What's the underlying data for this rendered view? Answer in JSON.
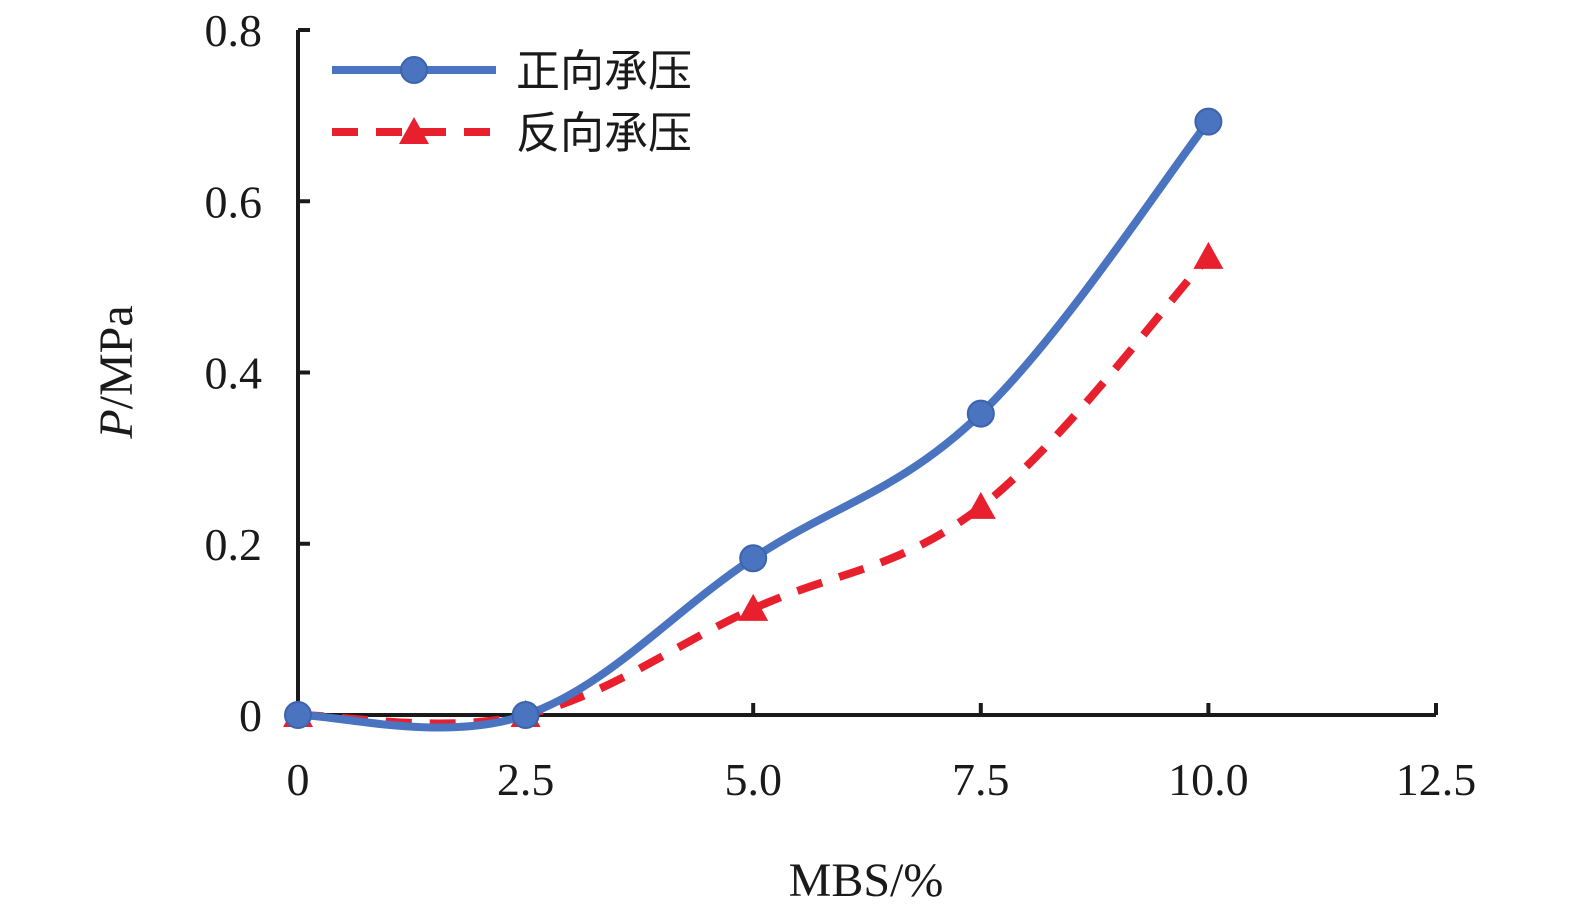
{
  "chart_data": {
    "type": "line",
    "title": "",
    "xlabel": "MBS/%",
    "ylabel_italic": "P",
    "ylabel_rest": "/MPa",
    "xlim": [
      0,
      12.5
    ],
    "ylim": [
      0,
      0.8
    ],
    "x_ticks": [
      0,
      2.5,
      5.0,
      7.5,
      10.0,
      12.5
    ],
    "x_tick_labels": [
      "0",
      "2.5",
      "5.0",
      "7.5",
      "10.0",
      "12.5"
    ],
    "y_ticks": [
      0,
      0.2,
      0.4,
      0.6,
      0.8
    ],
    "y_tick_labels": [
      "0",
      "0.2",
      "0.4",
      "0.6",
      "0.8"
    ],
    "grid": false,
    "legend_position": "top-left",
    "series": [
      {
        "name": "正向承压",
        "x": [
          0,
          2.5,
          5.0,
          7.5,
          10.0
        ],
        "values": [
          0,
          0,
          0.183,
          0.352,
          0.693
        ],
        "color": "#4a74c0",
        "line_style": "solid",
        "marker": "circle"
      },
      {
        "name": "反向承压",
        "x": [
          0,
          2.5,
          5.0,
          7.5,
          10.0
        ],
        "values": [
          0,
          0,
          0.124,
          0.243,
          0.535
        ],
        "color": "#e8202e",
        "line_style": "dashed",
        "marker": "triangle"
      }
    ]
  }
}
